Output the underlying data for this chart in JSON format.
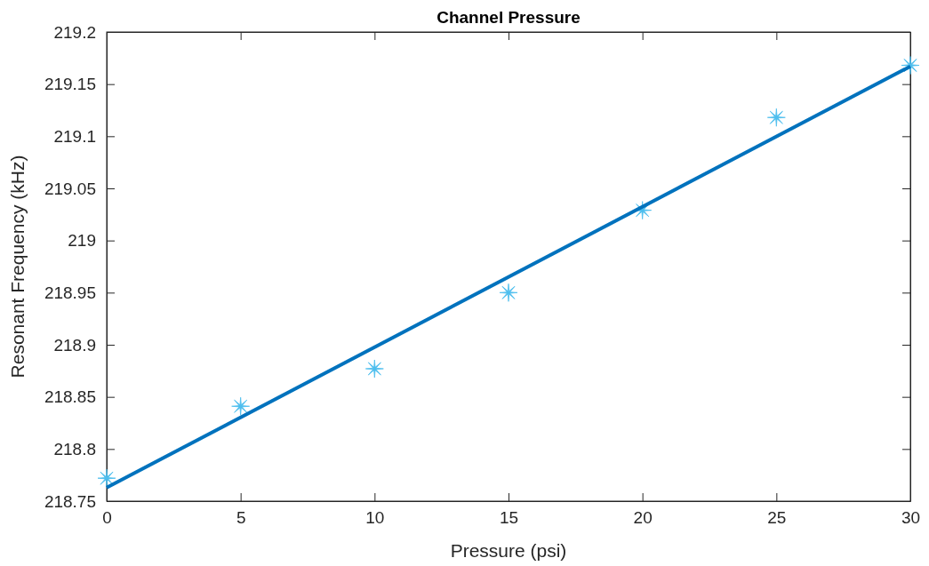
{
  "chart_data": {
    "type": "scatter",
    "title": "Channel Pressure",
    "xlabel": "Pressure (psi)",
    "ylabel": "Resonant Frequency (kHz)",
    "xlim": [
      0,
      30
    ],
    "xticks": [
      0,
      5,
      10,
      15,
      20,
      25,
      30
    ],
    "ylim": [
      218.75,
      219.2
    ],
    "yticks": [
      218.75,
      218.8,
      218.85,
      218.9,
      218.95,
      219,
      219.05,
      219.1,
      219.15,
      219.2
    ],
    "grid": false,
    "series": [
      {
        "marker": "star",
        "color": "#4dbeee",
        "x": [
          0,
          5,
          10,
          15,
          20,
          25,
          30
        ],
        "values": [
          218.772,
          218.841,
          218.877,
          218.95,
          219.029,
          219.118,
          219.168
        ]
      },
      {
        "type": "line",
        "marker": "none",
        "line_style": "solid",
        "color": "#0072bd",
        "x": [
          0,
          30
        ],
        "values": [
          218.763,
          219.167
        ]
      }
    ]
  }
}
